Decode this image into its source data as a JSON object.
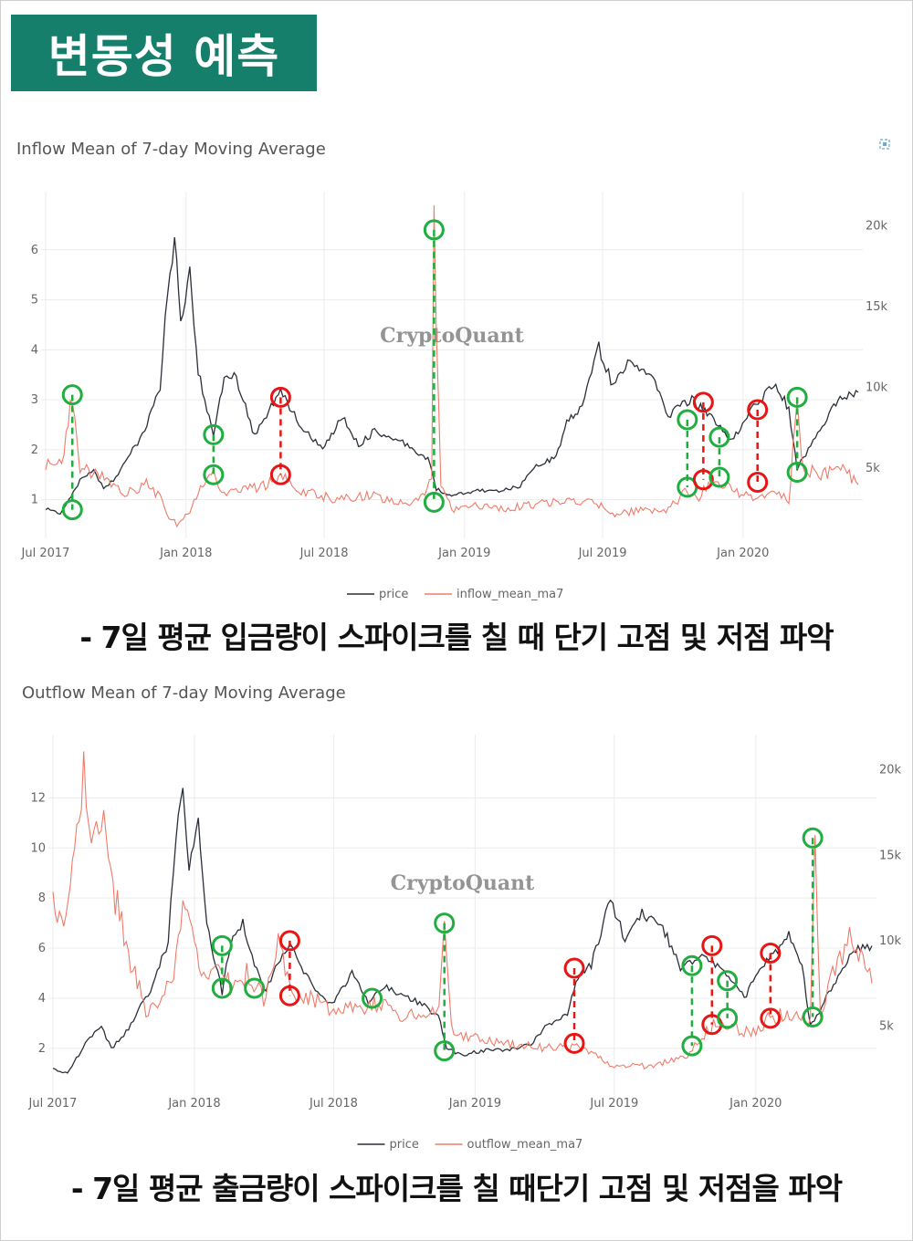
{
  "header": {
    "badge": "변동성 예측"
  },
  "charts": [
    {
      "title": "Inflow Mean of 7-day Moving Average",
      "watermark": "CryptoQuant",
      "caption": "- 7일 평균 입금량이 스파이크를 칠 때 단기 고점 및 저점 파악",
      "legend": [
        "price",
        "inflow_mean_ma7"
      ]
    },
    {
      "title": "Outflow Mean of 7-day Moving Average",
      "watermark": "CryptoQuant",
      "caption": "- 7일 평균 출금량이 스파이크를 칠 때단기 고점 및 저점을 파악",
      "legend": [
        "price",
        "outflow_mean_ma7"
      ]
    }
  ],
  "colors": {
    "price": "#2a2f3a",
    "flow": "#ef7b6a",
    "green": "#1fae3f",
    "red": "#e81515",
    "badge": "#167f6c"
  },
  "chart_data": [
    {
      "type": "line",
      "title": "Inflow Mean of 7-day Moving Average",
      "x_ticks": [
        "Jul 2017",
        "Jan 2018",
        "Jul 2018",
        "Jan 2019",
        "Jul 2019",
        "Jan 2020"
      ],
      "x_range": [
        "2017-07-01",
        "2020-05-31"
      ],
      "y_left_ticks": [
        1,
        2,
        3,
        4,
        5,
        6
      ],
      "y_left_range": [
        0.5,
        6.8
      ],
      "y_right_ticks": [
        "5k",
        "10k",
        "15k",
        "20k"
      ],
      "y_right_range": [
        1500,
        21000
      ],
      "grid": true,
      "legend_position": "bottom",
      "series": [
        {
          "name": "price",
          "axis": "right",
          "x": [
            "2017-07-01",
            "2017-07-20",
            "2017-08-15",
            "2017-09-02",
            "2017-09-15",
            "2017-10-01",
            "2017-10-20",
            "2017-11-08",
            "2017-11-28",
            "2017-12-08",
            "2017-12-17",
            "2017-12-25",
            "2018-01-06",
            "2018-01-17",
            "2018-02-06",
            "2018-02-20",
            "2018-03-05",
            "2018-04-01",
            "2018-05-05",
            "2018-06-01",
            "2018-06-29",
            "2018-07-25",
            "2018-08-15",
            "2018-09-05",
            "2018-10-15",
            "2018-11-14",
            "2018-11-25",
            "2018-12-15",
            "2019-01-15",
            "2019-02-15",
            "2019-03-15",
            "2019-04-02",
            "2019-05-01",
            "2019-05-15",
            "2019-06-01",
            "2019-06-26",
            "2019-07-15",
            "2019-08-06",
            "2019-09-05",
            "2019-09-25",
            "2019-10-26",
            "2019-11-15",
            "2019-12-17",
            "2020-01-15",
            "2020-02-13",
            "2020-03-01",
            "2020-03-12",
            "2020-03-17",
            "2020-04-05",
            "2020-04-29",
            "2020-05-10",
            "2020-05-31"
          ],
          "y": [
            2500,
            2200,
            4200,
            4900,
            3700,
            4400,
            5900,
            7300,
            10000,
            16000,
            19300,
            14000,
            17000,
            11000,
            7000,
            10500,
            11000,
            7000,
            9800,
            7500,
            6200,
            8200,
            6400,
            7300,
            6500,
            5600,
            3700,
            3300,
            3600,
            3600,
            3900,
            5000,
            5700,
            7900,
            8600,
            12500,
            10000,
            11700,
            10500,
            8300,
            9300,
            8400,
            6700,
            8800,
            10300,
            8600,
            5000,
            5400,
            6900,
            8800,
            9500,
            9700
          ]
        },
        {
          "name": "inflow_mean_ma7",
          "axis": "left",
          "x": [
            "2017-07-01",
            "2017-07-25",
            "2017-08-05",
            "2017-08-15",
            "2017-09-10",
            "2017-10-10",
            "2017-11-10",
            "2017-12-01",
            "2017-12-10",
            "2017-12-20",
            "2018-01-06",
            "2018-01-20",
            "2018-02-06",
            "2018-02-20",
            "2018-03-20",
            "2018-04-15",
            "2018-05-05",
            "2018-06-01",
            "2018-07-15",
            "2018-09-01",
            "2018-10-15",
            "2018-11-10",
            "2018-11-19",
            "2018-11-22",
            "2018-12-01",
            "2018-12-15",
            "2019-01-15",
            "2019-02-15",
            "2019-04-01",
            "2019-05-15",
            "2019-06-26",
            "2019-07-20",
            "2019-08-20",
            "2019-09-25",
            "2019-10-20",
            "2019-11-01",
            "2019-11-20",
            "2019-12-18",
            "2020-01-20",
            "2020-02-14",
            "2020-03-01",
            "2020-03-12",
            "2020-03-20",
            "2020-04-15",
            "2020-05-05",
            "2020-05-31"
          ],
          "y": [
            1.7,
            1.9,
            3.1,
            1.6,
            1.5,
            1.1,
            1.3,
            1.0,
            0.6,
            0.5,
            0.8,
            1.2,
            1.5,
            1.1,
            1.2,
            1.3,
            1.5,
            1.2,
            1.0,
            1.1,
            0.9,
            1.1,
            1.5,
            6.4,
            1.3,
            0.8,
            0.9,
            0.8,
            0.9,
            1.0,
            0.9,
            0.7,
            0.8,
            0.8,
            1.2,
            1.0,
            1.4,
            1.2,
            1.0,
            1.2,
            1.0,
            3.0,
            1.6,
            1.5,
            1.7,
            1.3
          ]
        }
      ],
      "markers": [
        {
          "x": "2017-08-05",
          "top": 3.1,
          "top_color": "green",
          "bottom": 0.8,
          "bottom_color": "green"
        },
        {
          "x": "2018-02-06",
          "top": 2.3,
          "top_color": "green",
          "bottom": 1.5,
          "bottom_color": "green"
        },
        {
          "x": "2018-05-05",
          "top": 3.05,
          "top_color": "red",
          "bottom": 1.5,
          "bottom_color": "red"
        },
        {
          "x": "2018-11-22",
          "top": 6.4,
          "top_color": "green",
          "bottom": 0.95,
          "bottom_color": "green"
        },
        {
          "x": "2019-10-20",
          "top": 2.6,
          "top_color": "green",
          "bottom": 1.25,
          "bottom_color": "green"
        },
        {
          "x": "2019-11-10",
          "top": 2.95,
          "top_color": "red",
          "bottom": 1.4,
          "bottom_color": "red"
        },
        {
          "x": "2019-12-01",
          "top": 2.25,
          "top_color": "green",
          "bottom": 1.45,
          "bottom_color": "green"
        },
        {
          "x": "2020-01-20",
          "top": 2.8,
          "top_color": "red",
          "bottom": 1.35,
          "bottom_color": "red"
        },
        {
          "x": "2020-03-12",
          "top": 3.05,
          "top_color": "green",
          "bottom": 1.55,
          "bottom_color": "green"
        }
      ]
    },
    {
      "type": "line",
      "title": "Outflow Mean of 7-day Moving Average",
      "x_ticks": [
        "Jul 2017",
        "Jan 2018",
        "Jul 2018",
        "Jan 2019",
        "Jul 2019",
        "Jan 2020"
      ],
      "x_range": [
        "2017-07-01",
        "2020-05-31"
      ],
      "y_left_ticks": [
        2,
        4,
        6,
        8,
        10,
        12
      ],
      "y_left_range": [
        0.5,
        13.8
      ],
      "y_right_ticks": [
        "5k",
        "10k",
        "15k",
        "20k"
      ],
      "y_right_range": [
        1500,
        21000
      ],
      "grid": true,
      "legend_position": "bottom",
      "series": [
        {
          "name": "price",
          "axis": "right",
          "x": [
            "2017-07-01",
            "2017-07-20",
            "2017-08-15",
            "2017-09-02",
            "2017-09-15",
            "2017-10-01",
            "2017-10-20",
            "2017-11-08",
            "2017-11-28",
            "2017-12-08",
            "2017-12-17",
            "2017-12-25",
            "2018-01-06",
            "2018-01-17",
            "2018-02-06",
            "2018-02-20",
            "2018-03-05",
            "2018-04-01",
            "2018-05-05",
            "2018-06-01",
            "2018-06-29",
            "2018-07-25",
            "2018-08-15",
            "2018-09-05",
            "2018-10-15",
            "2018-11-14",
            "2018-11-25",
            "2018-12-15",
            "2019-01-15",
            "2019-02-15",
            "2019-03-15",
            "2019-04-02",
            "2019-05-01",
            "2019-05-15",
            "2019-06-01",
            "2019-06-26",
            "2019-07-15",
            "2019-08-06",
            "2019-09-05",
            "2019-09-25",
            "2019-10-26",
            "2019-11-15",
            "2019-12-17",
            "2020-01-15",
            "2020-02-13",
            "2020-03-01",
            "2020-03-12",
            "2020-03-17",
            "2020-04-05",
            "2020-04-29",
            "2020-05-10",
            "2020-05-31"
          ],
          "y": [
            2500,
            2200,
            4200,
            4900,
            3700,
            4400,
            5900,
            7300,
            10000,
            16000,
            19300,
            14000,
            17000,
            11000,
            7000,
            10500,
            11000,
            7000,
            9800,
            7500,
            6200,
            8200,
            6400,
            7300,
            6500,
            5600,
            3700,
            3300,
            3600,
            3600,
            3900,
            5000,
            5700,
            7900,
            8600,
            12500,
            10000,
            11700,
            10500,
            8300,
            9300,
            8400,
            6700,
            8800,
            10300,
            8600,
            5000,
            5400,
            6900,
            8800,
            9500,
            9700
          ]
        },
        {
          "name": "outflow_mean_ma7",
          "axis": "left",
          "x": [
            "2017-07-01",
            "2017-07-15",
            "2017-08-01",
            "2017-08-10",
            "2017-08-20",
            "2017-09-05",
            "2017-09-20",
            "2017-10-10",
            "2017-10-30",
            "2017-11-20",
            "2017-12-05",
            "2017-12-20",
            "2018-01-10",
            "2018-02-01",
            "2018-02-20",
            "2018-03-10",
            "2018-04-01",
            "2018-04-20",
            "2018-05-05",
            "2018-06-01",
            "2018-07-01",
            "2018-08-01",
            "2018-09-01",
            "2018-10-01",
            "2018-11-01",
            "2018-11-15",
            "2018-11-22",
            "2018-12-01",
            "2018-12-20",
            "2019-02-01",
            "2019-04-01",
            "2019-05-10",
            "2019-06-01",
            "2019-07-01",
            "2019-08-15",
            "2019-10-01",
            "2019-10-20",
            "2019-11-10",
            "2019-12-01",
            "2020-01-01",
            "2020-01-20",
            "2020-02-20",
            "2020-03-12",
            "2020-03-18",
            "2020-03-25",
            "2020-04-10",
            "2020-05-05",
            "2020-05-31"
          ],
          "y": [
            8.3,
            6.5,
            10.5,
            13.1,
            10.0,
            11.5,
            8.0,
            5.5,
            3.5,
            4.0,
            5.0,
            8.0,
            4.5,
            5.5,
            4.2,
            5.0,
            4.0,
            6.2,
            4.3,
            4.0,
            3.5,
            3.6,
            3.8,
            3.3,
            3.3,
            3.8,
            6.8,
            2.8,
            2.5,
            2.2,
            2.0,
            2.1,
            1.8,
            1.3,
            1.3,
            1.6,
            2.4,
            3.0,
            2.8,
            2.6,
            3.3,
            3.3,
            3.1,
            10.3,
            3.2,
            5.0,
            6.5,
            4.6
          ]
        }
      ],
      "markers": [
        {
          "x": "2018-02-06",
          "top": 6.1,
          "top_color": "green",
          "bottom": 4.4,
          "bottom_color": "green"
        },
        {
          "x": "2018-03-20",
          "top": null,
          "top_color": "",
          "bottom": 4.4,
          "bottom_color": "green"
        },
        {
          "x": "2018-05-05",
          "top": 6.3,
          "top_color": "red",
          "bottom": 4.1,
          "bottom_color": "red"
        },
        {
          "x": "2018-08-20",
          "top": null,
          "top_color": "",
          "bottom": 4.0,
          "bottom_color": "green"
        },
        {
          "x": "2018-11-22",
          "top": 7.0,
          "top_color": "green",
          "bottom": 1.9,
          "bottom_color": "green"
        },
        {
          "x": "2019-05-10",
          "top": 5.2,
          "top_color": "red",
          "bottom": 2.2,
          "bottom_color": "red"
        },
        {
          "x": "2019-10-10",
          "top": 5.3,
          "top_color": "green",
          "bottom": 2.1,
          "bottom_color": "green"
        },
        {
          "x": "2019-11-05",
          "top": 6.1,
          "top_color": "red",
          "bottom": 2.95,
          "bottom_color": "red"
        },
        {
          "x": "2019-11-25",
          "top": 4.7,
          "top_color": "green",
          "bottom": 3.2,
          "bottom_color": "green"
        },
        {
          "x": "2020-01-20",
          "top": 5.8,
          "top_color": "red",
          "bottom": 3.2,
          "bottom_color": "red"
        },
        {
          "x": "2020-03-15",
          "top": 10.4,
          "top_color": "green",
          "bottom": 3.25,
          "bottom_color": "green"
        }
      ]
    }
  ]
}
